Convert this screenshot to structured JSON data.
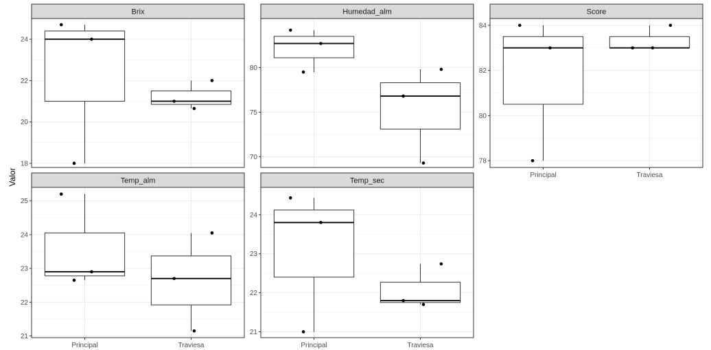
{
  "ylabel": "Valor",
  "chart_data": {
    "type": "boxplot",
    "ylabel": "Valor",
    "categories": [
      "Principal",
      "Traviesa"
    ],
    "grid": true,
    "panels": [
      {
        "title": "Brix",
        "ylim": [
          17.8,
          25.0
        ],
        "yticks": [
          18,
          20,
          22,
          24
        ],
        "boxes": [
          {
            "category": "Principal",
            "min": 18.0,
            "q1": 21.0,
            "median": 24.0,
            "q3": 24.4,
            "max": 24.7
          },
          {
            "category": "Traviesa",
            "min": 20.65,
            "q1": 20.85,
            "median": 21.0,
            "q3": 21.5,
            "max": 22.0
          }
        ],
        "points": [
          {
            "category": "Principal",
            "y": 24.7
          },
          {
            "category": "Principal",
            "y": 24.0
          },
          {
            "category": "Principal",
            "y": 18.0
          },
          {
            "category": "Traviesa",
            "y": 22.0
          },
          {
            "category": "Traviesa",
            "y": 21.0
          },
          {
            "category": "Traviesa",
            "y": 20.65
          }
        ]
      },
      {
        "title": "Humedad_alm",
        "ylim": [
          68.8,
          85.5
        ],
        "yticks": [
          70,
          75,
          80
        ],
        "boxes": [
          {
            "category": "Principal",
            "min": 79.5,
            "q1": 81.1,
            "median": 82.7,
            "q3": 83.5,
            "max": 84.2
          },
          {
            "category": "Traviesa",
            "min": 69.3,
            "q1": 73.1,
            "median": 76.8,
            "q3": 78.3,
            "max": 79.8
          }
        ],
        "points": [
          {
            "category": "Principal",
            "y": 84.2
          },
          {
            "category": "Principal",
            "y": 82.7
          },
          {
            "category": "Principal",
            "y": 79.5
          },
          {
            "category": "Traviesa",
            "y": 79.8
          },
          {
            "category": "Traviesa",
            "y": 76.8
          },
          {
            "category": "Traviesa",
            "y": 69.3
          }
        ]
      },
      {
        "title": "Score",
        "ylim": [
          77.7,
          84.3
        ],
        "yticks": [
          78,
          80,
          82,
          84
        ],
        "boxes": [
          {
            "category": "Principal",
            "min": 78.0,
            "q1": 80.5,
            "median": 83.0,
            "q3": 83.5,
            "max": 84.0
          },
          {
            "category": "Traviesa",
            "min": 83.0,
            "q1": 83.0,
            "median": 83.0,
            "q3": 83.5,
            "max": 84.0
          }
        ],
        "points": [
          {
            "category": "Principal",
            "y": 84.0
          },
          {
            "category": "Principal",
            "y": 83.0
          },
          {
            "category": "Principal",
            "y": 78.0
          },
          {
            "category": "Traviesa",
            "y": 84.0
          },
          {
            "category": "Traviesa",
            "y": 83.0
          },
          {
            "category": "Traviesa",
            "y": 83.0
          }
        ]
      },
      {
        "title": "Temp_alm",
        "ylim": [
          20.95,
          25.4
        ],
        "yticks": [
          21,
          22,
          23,
          24,
          25
        ],
        "boxes": [
          {
            "category": "Principal",
            "min": 22.65,
            "q1": 22.78,
            "median": 22.9,
            "q3": 24.05,
            "max": 25.2
          },
          {
            "category": "Traviesa",
            "min": 21.15,
            "q1": 21.92,
            "median": 22.7,
            "q3": 23.37,
            "max": 24.05
          }
        ],
        "points": [
          {
            "category": "Principal",
            "y": 25.2
          },
          {
            "category": "Principal",
            "y": 22.9
          },
          {
            "category": "Principal",
            "y": 22.65
          },
          {
            "category": "Traviesa",
            "y": 24.05
          },
          {
            "category": "Traviesa",
            "y": 22.7
          },
          {
            "category": "Traviesa",
            "y": 21.15
          }
        ]
      },
      {
        "title": "Temp_sec",
        "ylim": [
          20.85,
          24.7
        ],
        "yticks": [
          21,
          22,
          23,
          24
        ],
        "boxes": [
          {
            "category": "Principal",
            "min": 21.0,
            "q1": 22.4,
            "median": 23.8,
            "q3": 24.12,
            "max": 24.43
          },
          {
            "category": "Traviesa",
            "min": 21.7,
            "q1": 21.75,
            "median": 21.8,
            "q3": 22.27,
            "max": 22.74
          }
        ],
        "points": [
          {
            "category": "Principal",
            "y": 24.43
          },
          {
            "category": "Principal",
            "y": 23.8
          },
          {
            "category": "Principal",
            "y": 21.0
          },
          {
            "category": "Traviesa",
            "y": 22.74
          },
          {
            "category": "Traviesa",
            "y": 21.8
          },
          {
            "category": "Traviesa",
            "y": 21.7
          }
        ]
      }
    ]
  }
}
